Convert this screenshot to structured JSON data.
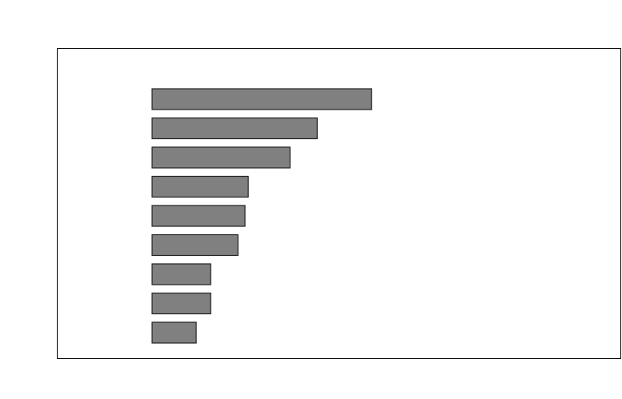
{
  "chart_data": {
    "type": "hbar",
    "categories": [
      null,
      null,
      null,
      null,
      null,
      null,
      null,
      null,
      null
    ],
    "values": [
      46.8,
      35.2,
      29.4,
      20.5,
      19.8,
      18.3,
      12.5,
      12.5,
      9.4
    ],
    "color": "#808080",
    "xlim": [
      0,
      100
    ]
  }
}
